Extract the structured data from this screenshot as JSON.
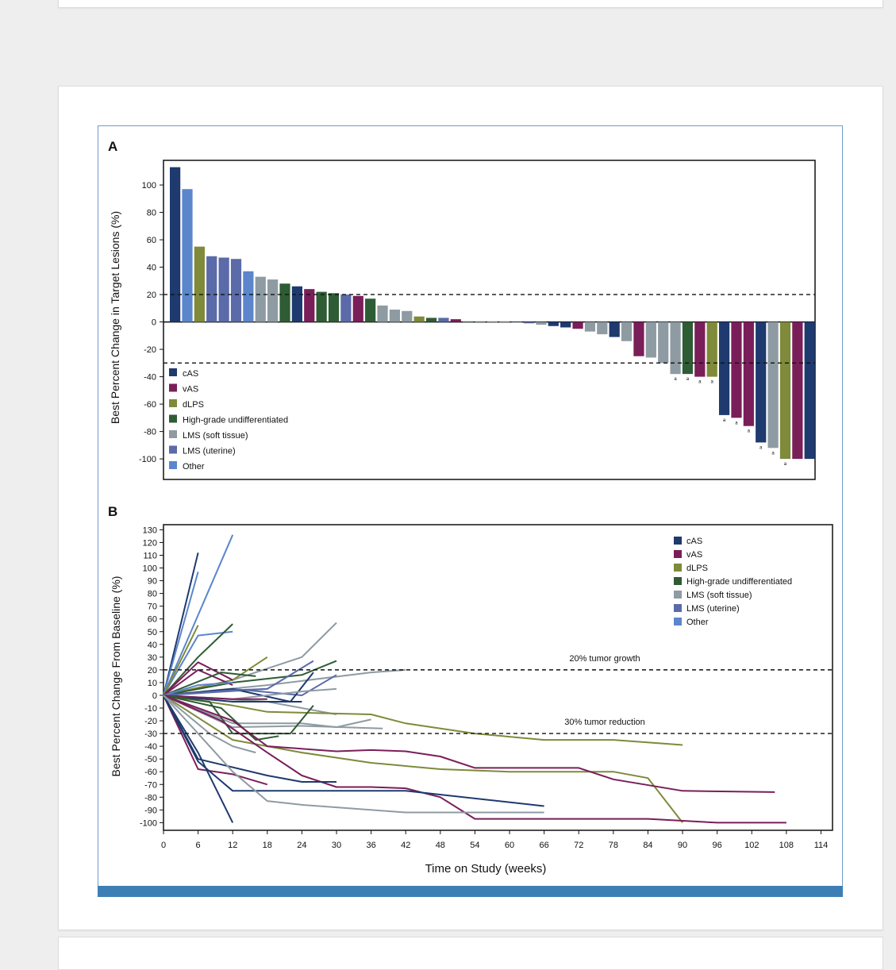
{
  "colors": {
    "cAS": "#1e3a6e",
    "vAS": "#7a1e5a",
    "dLPS": "#7f8a3a",
    "High-grade undifferentiated": "#2e5c34",
    "LMS (soft tissue)": "#8e9ba3",
    "LMS (uterine)": "#5b6aa8",
    "Other": "#5b86cc",
    "accent_bar": "#3d7fb5"
  },
  "chart_data": [
    {
      "type": "bar",
      "panel_label": "A",
      "ylabel": "Best Percent Change in Target Lesions (%)",
      "ylim": [
        -115,
        118
      ],
      "yticks": [
        100,
        80,
        60,
        40,
        20,
        0,
        -20,
        -40,
        -60,
        -80,
        -100
      ],
      "thresholds": [
        20,
        -30
      ],
      "legend": [
        "cAS",
        "vAS",
        "dLPS",
        "High-grade undifferentiated",
        "LMS (soft tissue)",
        "LMS (uterine)",
        "Other"
      ],
      "bars": [
        {
          "category": "cAS",
          "value": 113
        },
        {
          "category": "Other",
          "value": 97
        },
        {
          "category": "dLPS",
          "value": 55
        },
        {
          "category": "LMS (uterine)",
          "value": 48
        },
        {
          "category": "LMS (uterine)",
          "value": 47
        },
        {
          "category": "LMS (uterine)",
          "value": 46
        },
        {
          "category": "Other",
          "value": 37
        },
        {
          "category": "LMS (soft tissue)",
          "value": 33
        },
        {
          "category": "LMS (soft tissue)",
          "value": 31
        },
        {
          "category": "High-grade undifferentiated",
          "value": 28
        },
        {
          "category": "cAS",
          "value": 26
        },
        {
          "category": "vAS",
          "value": 24
        },
        {
          "category": "High-grade undifferentiated",
          "value": 22
        },
        {
          "category": "High-grade undifferentiated",
          "value": 21
        },
        {
          "category": "LMS (uterine)",
          "value": 20
        },
        {
          "category": "vAS",
          "value": 19
        },
        {
          "category": "High-grade undifferentiated",
          "value": 17
        },
        {
          "category": "LMS (soft tissue)",
          "value": 12
        },
        {
          "category": "LMS (soft tissue)",
          "value": 9
        },
        {
          "category": "LMS (soft tissue)",
          "value": 8
        },
        {
          "category": "dLPS",
          "value": 4
        },
        {
          "category": "High-grade undifferentiated",
          "value": 3
        },
        {
          "category": "LMS (uterine)",
          "value": 3
        },
        {
          "category": "vAS",
          "value": 2
        },
        {
          "category": "LMS (soft tissue)",
          "value": 0.5
        },
        {
          "category": "LMS (soft tissue)",
          "value": 0.4
        },
        {
          "category": "LMS (soft tissue)",
          "value": 0.3
        },
        {
          "category": "LMS (soft tissue)",
          "value": 0.2
        },
        {
          "category": "LMS (soft tissue)",
          "value": 0
        },
        {
          "category": "LMS (uterine)",
          "value": -1
        },
        {
          "category": "LMS (soft tissue)",
          "value": -2
        },
        {
          "category": "cAS",
          "value": -3
        },
        {
          "category": "cAS",
          "value": -4
        },
        {
          "category": "vAS",
          "value": -5
        },
        {
          "category": "LMS (soft tissue)",
          "value": -7
        },
        {
          "category": "LMS (soft tissue)",
          "value": -9
        },
        {
          "category": "cAS",
          "value": -11
        },
        {
          "category": "LMS (soft tissue)",
          "value": -14
        },
        {
          "category": "vAS",
          "value": -25
        },
        {
          "category": "LMS (soft tissue)",
          "value": -26
        },
        {
          "category": "LMS (soft tissue)",
          "value": -30
        },
        {
          "category": "LMS (soft tissue)",
          "value": -38,
          "marker": "a"
        },
        {
          "category": "High-grade undifferentiated",
          "value": -38,
          "marker": "a"
        },
        {
          "category": "vAS",
          "value": -40,
          "marker": "a"
        },
        {
          "category": "dLPS",
          "value": -40,
          "marker": "a"
        },
        {
          "category": "cAS",
          "value": -68,
          "marker": "a"
        },
        {
          "category": "vAS",
          "value": -70,
          "marker": "a"
        },
        {
          "category": "vAS",
          "value": -76,
          "marker": "a"
        },
        {
          "category": "cAS",
          "value": -88,
          "marker": "a"
        },
        {
          "category": "LMS (soft tissue)",
          "value": -92,
          "marker": "a"
        },
        {
          "category": "dLPS",
          "value": -100,
          "marker": "a"
        },
        {
          "category": "vAS",
          "value": -100
        },
        {
          "category": "cAS",
          "value": -100
        }
      ]
    },
    {
      "type": "line",
      "panel_label": "B",
      "xlabel": "Time on Study (weeks)",
      "ylabel": "Best Percent Change From Baseline (%)",
      "xlim": [
        0,
        116
      ],
      "ylim": [
        -106,
        134
      ],
      "xticks": [
        0,
        6,
        12,
        18,
        24,
        30,
        36,
        42,
        48,
        54,
        60,
        66,
        72,
        78,
        84,
        90,
        96,
        102,
        108,
        114
      ],
      "yticks": [
        130,
        120,
        110,
        100,
        90,
        80,
        70,
        60,
        50,
        40,
        30,
        20,
        10,
        0,
        -10,
        -20,
        -30,
        -40,
        -50,
        -60,
        -70,
        -80,
        -90,
        -100
      ],
      "thresholds": [
        {
          "y": 20,
          "label": "20% tumor growth"
        },
        {
          "y": -30,
          "label": "30% tumor reduction"
        }
      ],
      "legend": [
        "cAS",
        "vAS",
        "dLPS",
        "High-grade undifferentiated",
        "LMS (soft tissue)",
        "LMS (uterine)",
        "Other"
      ],
      "series": [
        {
          "name": "cAS",
          "points": [
            [
              0,
              0
            ],
            [
              6,
              112
            ]
          ]
        },
        {
          "name": "Other",
          "points": [
            [
              0,
              0
            ],
            [
              6,
              97
            ]
          ]
        },
        {
          "name": "Other",
          "points": [
            [
              0,
              0
            ],
            [
              12,
              126
            ]
          ]
        },
        {
          "name": "Other",
          "points": [
            [
              0,
              0
            ],
            [
              6,
              47
            ],
            [
              12,
              50
            ]
          ]
        },
        {
          "name": "dLPS",
          "points": [
            [
              0,
              0
            ],
            [
              6,
              55
            ]
          ]
        },
        {
          "name": "High-grade undifferentiated",
          "points": [
            [
              0,
              0
            ],
            [
              6,
              30
            ],
            [
              12,
              56
            ]
          ]
        },
        {
          "name": "LMS (soft tissue)",
          "points": [
            [
              0,
              0
            ],
            [
              12,
              12
            ],
            [
              24,
              30
            ],
            [
              30,
              57
            ]
          ]
        },
        {
          "name": "LMS (soft tissue)",
          "points": [
            [
              0,
              0
            ],
            [
              18,
              8
            ],
            [
              36,
              18
            ],
            [
              42,
              20
            ]
          ]
        },
        {
          "name": "dLPS",
          "points": [
            [
              0,
              0
            ],
            [
              12,
              12
            ],
            [
              18,
              30
            ]
          ]
        },
        {
          "name": "High-grade undifferentiated",
          "points": [
            [
              0,
              0
            ],
            [
              12,
              10
            ],
            [
              24,
              16
            ],
            [
              30,
              27
            ]
          ]
        },
        {
          "name": "LMS (uterine)",
          "points": [
            [
              0,
              0
            ],
            [
              12,
              5
            ],
            [
              24,
              0
            ],
            [
              30,
              16
            ]
          ]
        },
        {
          "name": "LMS (uterine)",
          "points": [
            [
              0,
              0
            ],
            [
              18,
              5
            ],
            [
              26,
              27
            ]
          ]
        },
        {
          "name": "cAS",
          "points": [
            [
              0,
              0
            ],
            [
              12,
              5
            ],
            [
              22,
              -5
            ],
            [
              26,
              18
            ]
          ]
        },
        {
          "name": "vAS",
          "points": [
            [
              0,
              0
            ],
            [
              6,
              26
            ],
            [
              12,
              12
            ]
          ]
        },
        {
          "name": "vAS",
          "points": [
            [
              0,
              0
            ],
            [
              6,
              20
            ],
            [
              12,
              8
            ]
          ]
        },
        {
          "name": "High-grade undifferentiated",
          "points": [
            [
              0,
              0
            ],
            [
              10,
              18
            ],
            [
              16,
              15
            ]
          ]
        },
        {
          "name": "LMS (uterine)",
          "points": [
            [
              0,
              0
            ],
            [
              12,
              4
            ],
            [
              18,
              5
            ]
          ]
        },
        {
          "name": "Other",
          "points": [
            [
              0,
              0
            ],
            [
              6,
              8
            ],
            [
              12,
              10
            ]
          ]
        },
        {
          "name": "LMS (soft tissue)",
          "points": [
            [
              0,
              0
            ],
            [
              12,
              -3
            ],
            [
              24,
              3
            ],
            [
              30,
              5
            ]
          ]
        },
        {
          "name": "LMS (soft tissue)",
          "points": [
            [
              0,
              0
            ],
            [
              18,
              -5
            ],
            [
              30,
              -15
            ]
          ]
        },
        {
          "name": "cAS",
          "points": [
            [
              0,
              0
            ],
            [
              12,
              -5
            ],
            [
              24,
              -5
            ]
          ]
        },
        {
          "name": "vAS",
          "points": [
            [
              0,
              0
            ],
            [
              12,
              -3
            ],
            [
              18,
              -3
            ]
          ]
        },
        {
          "name": "LMS (soft tissue)",
          "points": [
            [
              0,
              0
            ],
            [
              12,
              -22
            ],
            [
              24,
              -22
            ],
            [
              30,
              -25
            ],
            [
              36,
              -19
            ]
          ]
        },
        {
          "name": "LMS (soft tissue)",
          "points": [
            [
              0,
              0
            ],
            [
              12,
              -25
            ],
            [
              24,
              -24
            ],
            [
              38,
              -26
            ]
          ]
        },
        {
          "name": "dLPS",
          "points": [
            [
              0,
              0
            ],
            [
              12,
              -8
            ],
            [
              18,
              -13
            ],
            [
              36,
              -15
            ],
            [
              42,
              -22
            ],
            [
              54,
              -30
            ],
            [
              66,
              -35
            ],
            [
              78,
              -35
            ],
            [
              90,
              -39
            ]
          ]
        },
        {
          "name": "High-grade undifferentiated",
          "points": [
            [
              0,
              0
            ],
            [
              8,
              -5
            ],
            [
              12,
              -30
            ],
            [
              18,
              -30
            ],
            [
              22,
              -30
            ],
            [
              26,
              -8
            ]
          ]
        },
        {
          "name": "High-grade undifferentiated",
          "points": [
            [
              0,
              0
            ],
            [
              10,
              -10
            ],
            [
              16,
              -35
            ],
            [
              20,
              -32
            ]
          ]
        },
        {
          "name": "dLPS",
          "points": [
            [
              0,
              0
            ],
            [
              12,
              -35
            ],
            [
              24,
              -45
            ],
            [
              36,
              -53
            ],
            [
              48,
              -58
            ],
            [
              60,
              -60
            ],
            [
              78,
              -60
            ],
            [
              84,
              -65
            ],
            [
              90,
              -100
            ]
          ]
        },
        {
          "name": "vAS",
          "points": [
            [
              0,
              0
            ],
            [
              12,
              -20
            ],
            [
              18,
              -40
            ],
            [
              30,
              -44
            ],
            [
              36,
              -43
            ],
            [
              42,
              -44
            ],
            [
              48,
              -48
            ],
            [
              54,
              -57
            ],
            [
              72,
              -57
            ],
            [
              78,
              -66
            ],
            [
              90,
              -75
            ],
            [
              106,
              -76
            ]
          ]
        },
        {
          "name": "vAS",
          "points": [
            [
              0,
              0
            ],
            [
              10,
              -20
            ],
            [
              18,
              -45
            ],
            [
              24,
              -63
            ],
            [
              30,
              -72
            ],
            [
              36,
              -72
            ],
            [
              42,
              -73
            ],
            [
              48,
              -80
            ],
            [
              54,
              -97
            ],
            [
              84,
              -97
            ],
            [
              96,
              -100
            ],
            [
              108,
              -100
            ]
          ]
        },
        {
          "name": "vAS",
          "points": [
            [
              0,
              0
            ],
            [
              6,
              -58
            ],
            [
              12,
              -62
            ],
            [
              18,
              -70
            ]
          ]
        },
        {
          "name": "cAS",
          "points": [
            [
              0,
              0
            ],
            [
              6,
              -52
            ],
            [
              12,
              -75
            ],
            [
              42,
              -75
            ],
            [
              66,
              -87
            ]
          ]
        },
        {
          "name": "cAS",
          "points": [
            [
              0,
              0
            ],
            [
              6,
              -45
            ],
            [
              12,
              -100
            ]
          ]
        },
        {
          "name": "cAS",
          "points": [
            [
              0,
              0
            ],
            [
              6,
              -50
            ],
            [
              18,
              -63
            ],
            [
              24,
              -68
            ],
            [
              30,
              -68
            ]
          ]
        },
        {
          "name": "LMS (soft tissue)",
          "points": [
            [
              0,
              0
            ],
            [
              12,
              -60
            ],
            [
              18,
              -83
            ],
            [
              24,
              -86
            ],
            [
              42,
              -92
            ],
            [
              66,
              -92
            ]
          ]
        },
        {
          "name": "LMS (soft tissue)",
          "points": [
            [
              0,
              0
            ],
            [
              8,
              -30
            ],
            [
              12,
              -40
            ],
            [
              16,
              -45
            ]
          ]
        }
      ]
    }
  ]
}
